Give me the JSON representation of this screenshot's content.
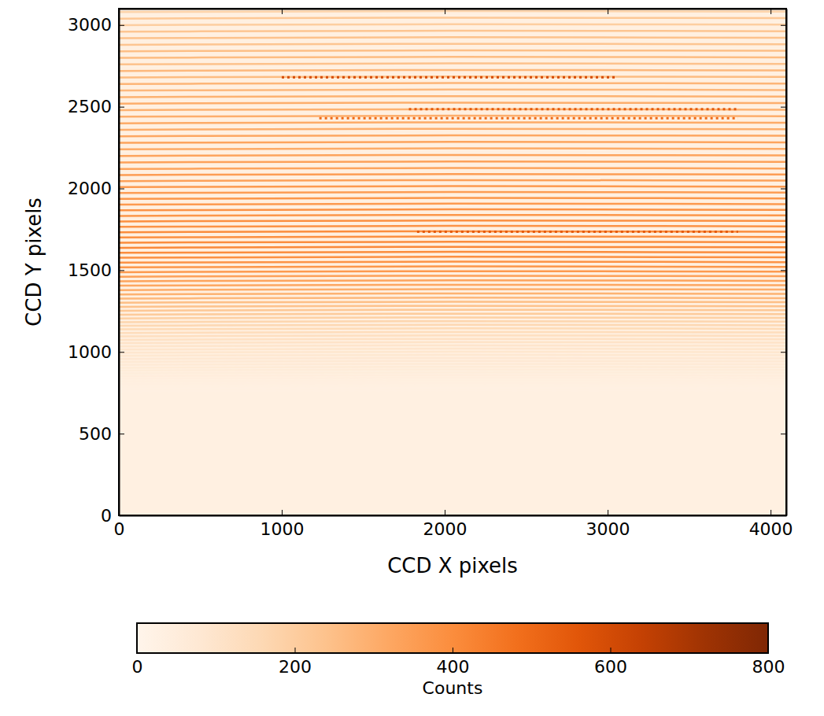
{
  "chart_data": {
    "type": "heatmap",
    "x_label": "CCD X pixels",
    "y_label": "CCD Y pixels",
    "xlim": [
      0,
      4096
    ],
    "ylim": [
      0,
      3100
    ],
    "xticks": [
      0,
      1000,
      2000,
      3000,
      4000
    ],
    "yticks": [
      0,
      500,
      1000,
      1500,
      2000,
      2500,
      3000
    ],
    "x": [
      0,
      2048,
      4096
    ],
    "background": 35,
    "orders": [
      {
        "y": [
          3079,
          3085,
          3082
        ],
        "counts": 180
      },
      {
        "y": [
          3039,
          3045,
          3042
        ],
        "counts": 220
      },
      {
        "y": [
          2999,
          3005,
          3002
        ],
        "counts": 200
      },
      {
        "y": [
          2959,
          2965,
          2962
        ],
        "counts": 230
      },
      {
        "y": [
          2919,
          2925,
          2922
        ],
        "counts": 240
      },
      {
        "y": [
          2879,
          2885,
          2882
        ],
        "counts": 230
      },
      {
        "y": [
          2839,
          2845,
          2842
        ],
        "counts": 250
      },
      {
        "y": [
          2799,
          2805,
          2802
        ],
        "counts": 260
      },
      {
        "y": [
          2759,
          2765,
          2762
        ],
        "counts": 240
      },
      {
        "y": [
          2719,
          2725,
          2722
        ],
        "counts": 270
      },
      {
        "y": [
          2679,
          2685,
          2682
        ],
        "counts": 260
      },
      {
        "y": [
          2639,
          2645,
          2642
        ],
        "counts": 280
      },
      {
        "y": [
          2599,
          2605,
          2602
        ],
        "counts": 270
      },
      {
        "y": [
          2559,
          2565,
          2562
        ],
        "counts": 290
      },
      {
        "y": [
          2519,
          2525,
          2522
        ],
        "counts": 300
      },
      {
        "y": [
          2479,
          2485,
          2482
        ],
        "counts": 290
      },
      {
        "y": [
          2439,
          2445,
          2442
        ],
        "counts": 300
      },
      {
        "y": [
          2399,
          2405,
          2402
        ],
        "counts": 310
      },
      {
        "y": [
          2359,
          2365,
          2362
        ],
        "counts": 300
      },
      {
        "y": [
          2319,
          2325,
          2322
        ],
        "counts": 320
      },
      {
        "y": [
          2279,
          2285,
          2282
        ],
        "counts": 330
      },
      {
        "y": [
          2239,
          2245,
          2242
        ],
        "counts": 310
      },
      {
        "y": [
          2199,
          2205,
          2202
        ],
        "counts": 330
      },
      {
        "y": [
          2159,
          2165,
          2162
        ],
        "counts": 340
      },
      {
        "y": [
          2119,
          2125,
          2122
        ],
        "counts": 330
      },
      {
        "y": [
          2082,
          2088,
          2085
        ],
        "counts": 350
      },
      {
        "y": [
          2045,
          2051,
          2048
        ],
        "counts": 340
      },
      {
        "y": [
          2008,
          2014,
          2011
        ],
        "counts": 360
      },
      {
        "y": [
          1972,
          1978,
          1975
        ],
        "counts": 350
      },
      {
        "y": [
          1936,
          1942,
          1939
        ],
        "counts": 370
      },
      {
        "y": [
          1901,
          1907,
          1904
        ],
        "counts": 360
      },
      {
        "y": [
          1866,
          1872,
          1869
        ],
        "counts": 380
      },
      {
        "y": [
          1832,
          1838,
          1835
        ],
        "counts": 370
      },
      {
        "y": [
          1798,
          1804,
          1801
        ],
        "counts": 390
      },
      {
        "y": [
          1765,
          1771,
          1768
        ],
        "counts": 380
      },
      {
        "y": [
          1732,
          1738,
          1735
        ],
        "counts": 400
      },
      {
        "y": [
          1700,
          1706,
          1703
        ],
        "counts": 390
      },
      {
        "y": [
          1668,
          1674,
          1671
        ],
        "counts": 400
      },
      {
        "y": [
          1637,
          1643,
          1640
        ],
        "counts": 410
      },
      {
        "y": [
          1606,
          1612,
          1609
        ],
        "counts": 400
      },
      {
        "y": [
          1576,
          1582,
          1579
        ],
        "counts": 390
      },
      {
        "y": [
          1546,
          1552,
          1549
        ],
        "counts": 380
      },
      {
        "y": [
          1517,
          1523,
          1520
        ],
        "counts": 370
      },
      {
        "y": [
          1488,
          1494,
          1491
        ],
        "counts": 360
      },
      {
        "y": [
          1460,
          1466,
          1463
        ],
        "counts": 340
      },
      {
        "y": [
          1432,
          1438,
          1435
        ],
        "counts": 330
      },
      {
        "y": [
          1405,
          1411,
          1408
        ],
        "counts": 320
      },
      {
        "y": [
          1378,
          1384,
          1381
        ],
        "counts": 300
      },
      {
        "y": [
          1352,
          1358,
          1355
        ],
        "counts": 290
      },
      {
        "y": [
          1326,
          1332,
          1329
        ],
        "counts": 270
      },
      {
        "y": [
          1301,
          1307,
          1304
        ],
        "counts": 250
      },
      {
        "y": [
          1276,
          1282,
          1279
        ],
        "counts": 240
      },
      {
        "y": [
          1252,
          1258,
          1255
        ],
        "counts": 220
      },
      {
        "y": [
          1228,
          1234,
          1231
        ],
        "counts": 210
      },
      {
        "y": [
          1205,
          1211,
          1208
        ],
        "counts": 190
      },
      {
        "y": [
          1182,
          1188,
          1185
        ],
        "counts": 170
      },
      {
        "y": [
          1160,
          1166,
          1163
        ],
        "counts": 160
      },
      {
        "y": [
          1138,
          1144,
          1141
        ],
        "counts": 150
      },
      {
        "y": [
          1116,
          1122,
          1119
        ],
        "counts": 140
      },
      {
        "y": [
          1095,
          1101,
          1098
        ],
        "counts": 130
      },
      {
        "y": [
          1074,
          1080,
          1077
        ],
        "counts": 120
      },
      {
        "y": [
          1054,
          1060,
          1057
        ],
        "counts": 110
      },
      {
        "y": [
          1034,
          1040,
          1037
        ],
        "counts": 100
      },
      {
        "y": [
          1014,
          1020,
          1017
        ],
        "counts": 95
      },
      {
        "y": [
          995,
          1001,
          998
        ],
        "counts": 90
      },
      {
        "y": [
          976,
          982,
          979
        ],
        "counts": 85
      },
      {
        "y": [
          957,
          963,
          960
        ],
        "counts": 80
      },
      {
        "y": [
          939,
          945,
          942
        ],
        "counts": 75
      },
      {
        "y": [
          921,
          927,
          924
        ],
        "counts": 70
      },
      {
        "y": [
          903,
          909,
          906
        ],
        "counts": 65
      },
      {
        "y": [
          886,
          892,
          889
        ],
        "counts": 60
      },
      {
        "y": [
          869,
          875,
          872
        ],
        "counts": 55
      },
      {
        "y": [
          852,
          858,
          855
        ],
        "counts": 50
      },
      {
        "y": [
          836,
          842,
          839
        ],
        "counts": 45
      },
      {
        "y": [
          820,
          826,
          823
        ],
        "counts": 40
      },
      {
        "y": [
          804,
          810,
          807
        ],
        "counts": 38
      },
      {
        "y": [
          789,
          795,
          792
        ],
        "counts": 35
      },
      {
        "y": [
          774,
          780,
          777
        ],
        "counts": 32
      },
      {
        "y": [
          759,
          765,
          762
        ],
        "counts": 30
      }
    ],
    "features": [
      {
        "x": [
          1000,
          3050
        ],
        "y": 2680,
        "counts": 600,
        "line_style": "dotted"
      },
      {
        "x": [
          1780,
          3800
        ],
        "y": 2485,
        "counts": 550,
        "line_style": "dotted"
      },
      {
        "x": [
          1230,
          3800
        ],
        "y": 2430,
        "counts": 500,
        "line_style": "dotted"
      },
      {
        "x": [
          1830,
          3800
        ],
        "y": 1735,
        "counts": 550,
        "line_style": "dotted"
      }
    ],
    "colorbar": {
      "range": [
        0,
        800
      ],
      "ticks": [
        0,
        200,
        400,
        600,
        800
      ],
      "label": "Counts"
    }
  }
}
